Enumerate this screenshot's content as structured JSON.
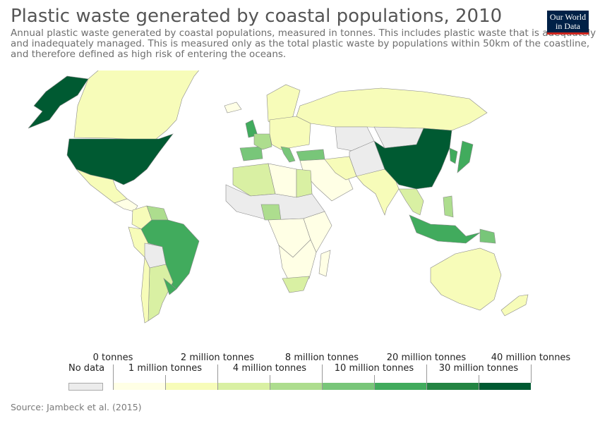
{
  "header": {
    "title": "Plastic waste generated by coastal populations, 2010",
    "subtitle": "Annual plastic waste generated by coastal populations, measured in tonnes. This includes plastic waste that is adequately and inadequately managed. This is measured only as the total plastic waste by populations within 50km of the coastline, and therefore defined as high risk of entering the oceans."
  },
  "logo": {
    "line1": "Our World",
    "line2": "in Data"
  },
  "legend": {
    "no_data_label": "No data",
    "no_data_color": "#ececec",
    "bins": [
      {
        "color": "#ffffe5"
      },
      {
        "color": "#f7fcb9"
      },
      {
        "color": "#d9f0a3"
      },
      {
        "color": "#addd8e"
      },
      {
        "color": "#78c679"
      },
      {
        "color": "#41ab5d"
      },
      {
        "color": "#238443"
      },
      {
        "color": "#005a32"
      }
    ],
    "labels": [
      "0 tonnes",
      "1 million tonnes",
      "2 million tonnes",
      "4 million tonnes",
      "8 million tonnes",
      "10 million tonnes",
      "20 million tonnes",
      "30 million tonnes",
      "40 million tonnes"
    ]
  },
  "source": "Source: Jambeck et al. (2015)",
  "map": {
    "ocean_color": "#ffffff",
    "regions": [
      {
        "name": "Alaska",
        "color": "#005a32"
      },
      {
        "name": "Canada",
        "color": "#f7fcb9"
      },
      {
        "name": "Greenland",
        "color": "#ffffe5"
      },
      {
        "name": "United States",
        "color": "#005a32"
      },
      {
        "name": "Mexico",
        "color": "#f7fcb9"
      },
      {
        "name": "Central America",
        "color": "#ffffe5"
      },
      {
        "name": "Colombia",
        "color": "#f7fcb9"
      },
      {
        "name": "Venezuela",
        "color": "#addd8e"
      },
      {
        "name": "Peru",
        "color": "#f7fcb9"
      },
      {
        "name": "Bolivia",
        "color": "#ececec"
      },
      {
        "name": "Brazil",
        "color": "#41ab5d"
      },
      {
        "name": "Argentina",
        "color": "#d9f0a3"
      },
      {
        "name": "Chile",
        "color": "#f7fcb9"
      },
      {
        "name": "Uruguay",
        "color": "#41ab5d"
      },
      {
        "name": "Iceland",
        "color": "#ffffe5"
      },
      {
        "name": "United Kingdom",
        "color": "#41ab5d"
      },
      {
        "name": "Scandinavia",
        "color": "#f7fcb9"
      },
      {
        "name": "Spain",
        "color": "#78c679"
      },
      {
        "name": "France",
        "color": "#addd8e"
      },
      {
        "name": "Central Europe",
        "color": "#f7fcb9"
      },
      {
        "name": "Italy",
        "color": "#78c679"
      },
      {
        "name": "Turkey",
        "color": "#78c679"
      },
      {
        "name": "Russia",
        "color": "#f7fcb9"
      },
      {
        "name": "Kazakhstan",
        "color": "#ececec"
      },
      {
        "name": "Middle East",
        "color": "#ffffe5"
      },
      {
        "name": "Iran",
        "color": "#f7fcb9"
      },
      {
        "name": "Central Asia",
        "color": "#ececec"
      },
      {
        "name": "Mongolia",
        "color": "#ececec"
      },
      {
        "name": "North Africa West",
        "color": "#d9f0a3"
      },
      {
        "name": "Libya",
        "color": "#ffffe5"
      },
      {
        "name": "Egypt",
        "color": "#d9f0a3"
      },
      {
        "name": "Sahel",
        "color": "#ececec"
      },
      {
        "name": "Nigeria",
        "color": "#addd8e"
      },
      {
        "name": "Central Africa",
        "color": "#ffffe5"
      },
      {
        "name": "East Africa",
        "color": "#ffffe5"
      },
      {
        "name": "Southern Africa",
        "color": "#ffffe5"
      },
      {
        "name": "South Africa",
        "color": "#d9f0a3"
      },
      {
        "name": "Madagascar",
        "color": "#ffffe5"
      },
      {
        "name": "India",
        "color": "#f7fcb9"
      },
      {
        "name": "China",
        "color": "#005a32"
      },
      {
        "name": "Korea",
        "color": "#41ab5d"
      },
      {
        "name": "Japan",
        "color": "#41ab5d"
      },
      {
        "name": "Southeast Asia",
        "color": "#d9f0a3"
      },
      {
        "name": "Philippines",
        "color": "#addd8e"
      },
      {
        "name": "Indonesia",
        "color": "#41ab5d"
      },
      {
        "name": "Papua New Guinea",
        "color": "#78c679"
      },
      {
        "name": "Australia",
        "color": "#f7fcb9"
      },
      {
        "name": "New Zealand",
        "color": "#f7fcb9"
      }
    ]
  }
}
